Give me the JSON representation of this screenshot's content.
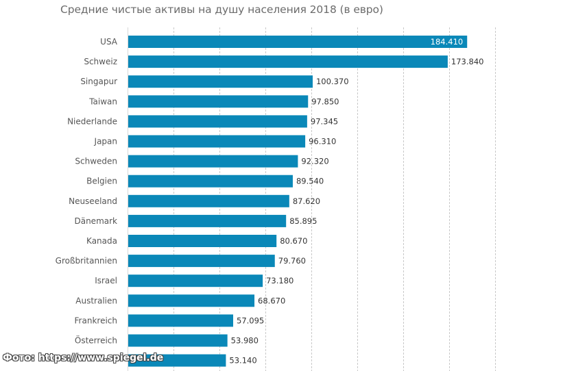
{
  "chart_data": {
    "type": "bar",
    "orientation": "horizontal",
    "title": "Средние чистые активы на душу населения 2018 (в евро)",
    "xlabel": "",
    "ylabel": "",
    "xlim": [
      0,
      200000
    ],
    "grid": true,
    "grid_step": 25000,
    "categories": [
      "USA",
      "Schweiz",
      "Singapur",
      "Taiwan",
      "Niederlande",
      "Japan",
      "Schweden",
      "Belgien",
      "Neuseeland",
      "Dänemark",
      "Kanada",
      "Großbritannien",
      "Israel",
      "Australien",
      "Frankreich",
      "Österreich",
      ""
    ],
    "values": [
      184410,
      173840,
      100370,
      97850,
      97345,
      96310,
      92320,
      89540,
      87620,
      85895,
      80670,
      79760,
      73180,
      68670,
      57095,
      53980,
      53140
    ],
    "value_labels": [
      "184.410",
      "173.840",
      "100.370",
      "97.850",
      "97.345",
      "96.310",
      "92.320",
      "89.540",
      "87.620",
      "85.895",
      "80.670",
      "79.760",
      "73.180",
      "68.670",
      "57.095",
      "53.980",
      "53.140"
    ],
    "bar_color": "#0a88b8"
  },
  "credit": "Фото: https://www.spiegel.de"
}
